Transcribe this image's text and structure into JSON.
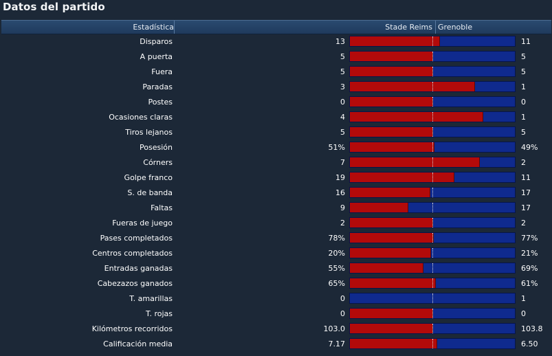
{
  "title": "Datos del partido",
  "header": {
    "stat": "Estadística",
    "home": "Stade Reims",
    "away": "Grenoble"
  },
  "colors": {
    "home": "#b30a0a",
    "away": "#0f2a8e"
  },
  "stats": [
    {
      "label": "Disparos",
      "home": "13",
      "away": "11",
      "home_share": 0.54
    },
    {
      "label": "A puerta",
      "home": "5",
      "away": "5",
      "home_share": 0.5
    },
    {
      "label": "Fuera",
      "home": "5",
      "away": "5",
      "home_share": 0.5
    },
    {
      "label": "Paradas",
      "home": "3",
      "away": "1",
      "home_share": 0.75
    },
    {
      "label": "Postes",
      "home": "0",
      "away": "0",
      "home_share": 0.5
    },
    {
      "label": "Ocasiones claras",
      "home": "4",
      "away": "1",
      "home_share": 0.8
    },
    {
      "label": "Tiros lejanos",
      "home": "5",
      "away": "5",
      "home_share": 0.5
    },
    {
      "label": "Posesión",
      "home": "51%",
      "away": "49%",
      "home_share": 0.51
    },
    {
      "label": "Córners",
      "home": "7",
      "away": "2",
      "home_share": 0.78
    },
    {
      "label": "Golpe franco",
      "home": "19",
      "away": "11",
      "home_share": 0.63
    },
    {
      "label": "S. de banda",
      "home": "16",
      "away": "17",
      "home_share": 0.485
    },
    {
      "label": "Faltas",
      "home": "9",
      "away": "17",
      "home_share": 0.35
    },
    {
      "label": "Fueras de juego",
      "home": "2",
      "away": "2",
      "home_share": 0.5
    },
    {
      "label": "Pases completados",
      "home": "78%",
      "away": "77%",
      "home_share": 0.503
    },
    {
      "label": "Centros completados",
      "home": "20%",
      "away": "21%",
      "home_share": 0.488
    },
    {
      "label": "Entradas ganadas",
      "home": "55%",
      "away": "69%",
      "home_share": 0.444
    },
    {
      "label": "Cabezazos ganados",
      "home": "65%",
      "away": "61%",
      "home_share": 0.516
    },
    {
      "label": "T. amarillas",
      "home": "0",
      "away": "1",
      "home_share": 0.0
    },
    {
      "label": "T. rojas",
      "home": "0",
      "away": "0",
      "home_share": 0.5
    },
    {
      "label": "Kilómetros recorridos",
      "home": "103.0",
      "away": "103.8",
      "home_share": 0.498
    },
    {
      "label": "Calificación media",
      "home": "7.17",
      "away": "6.50",
      "home_share": 0.524
    }
  ]
}
